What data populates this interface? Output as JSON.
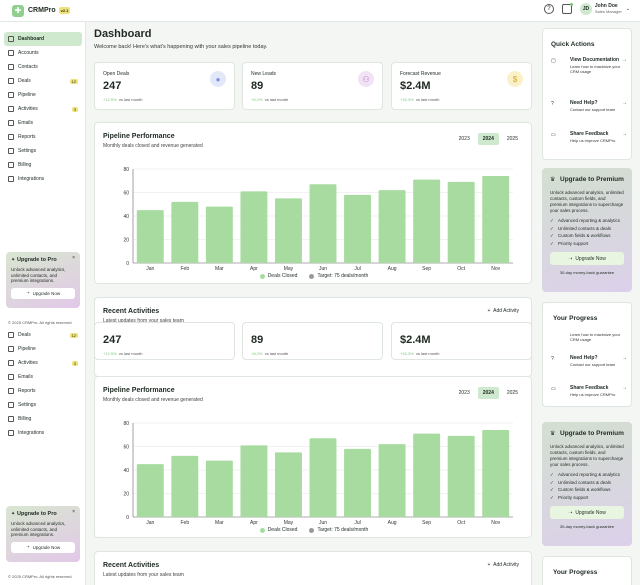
{
  "app": {
    "name": "CRMPro",
    "version": "v2.1"
  },
  "header": {
    "user_name": "John Doe",
    "user_role": "Sales Manager",
    "initials": "JD"
  },
  "sidebar": {
    "items": [
      {
        "label": "Dashboard",
        "active": true
      },
      {
        "label": "Accounts"
      },
      {
        "label": "Contacts"
      },
      {
        "label": "Deals",
        "badge": "12"
      },
      {
        "label": "Pipeline"
      },
      {
        "label": "Activities",
        "badge": "3"
      },
      {
        "label": "Emails"
      },
      {
        "label": "Reports"
      },
      {
        "label": "Settings"
      },
      {
        "label": "Billing"
      },
      {
        "label": "Integrations"
      }
    ],
    "items_repeat": [
      {
        "label": "Deals",
        "badge": "12"
      },
      {
        "label": "Pipeline"
      },
      {
        "label": "Activities",
        "badge": "3"
      },
      {
        "label": "Emails"
      },
      {
        "label": "Reports"
      },
      {
        "label": "Settings"
      },
      {
        "label": "Billing"
      },
      {
        "label": "Integrations"
      }
    ],
    "promo": {
      "title": "Upgrade to Pro",
      "text": "Unlock advanced analytics, unlimited contacts, and premium integrations.",
      "button": "Upgrade Now"
    },
    "copyright": "© 2025 CRMPro. All rights reserved."
  },
  "main": {
    "title": "Dashboard",
    "subtitle": "Welcome back! Here's what's happening with your sales pipeline today.",
    "stats": [
      {
        "label": "Open Deals",
        "value": "247",
        "change": "+12.5%",
        "period": "vs last month"
      },
      {
        "label": "New Leads",
        "value": "89",
        "change": "+8.2%",
        "period": "vs last month"
      },
      {
        "label": "Forecast Revenue",
        "value": "$2.4M",
        "change": "+15.3%",
        "period": "vs last month"
      }
    ],
    "pipeline": {
      "title": "Pipeline Performance",
      "subtitle": "Monthly deals closed and revenue generated",
      "years": [
        "2023",
        "2024",
        "2025"
      ],
      "active_year": "2024",
      "legend": [
        "Deals Closed",
        "Target: 75 deals/month"
      ]
    },
    "activities": {
      "title": "Recent Activities",
      "subtitle": "Latest updates from your sales team",
      "add_label": "Add Activity"
    }
  },
  "chart_data": {
    "type": "bar",
    "categories": [
      "Jan",
      "Feb",
      "Mar",
      "Apr",
      "May",
      "Jun",
      "Jul",
      "Aug",
      "Sep",
      "Oct",
      "Nov"
    ],
    "series": [
      {
        "name": "Deals Closed",
        "values": [
          45,
          52,
          48,
          61,
          55,
          67,
          58,
          62,
          71,
          69,
          74
        ]
      }
    ],
    "ylim": [
      0,
      80
    ],
    "yticks": [
      0,
      20,
      40,
      60,
      80
    ],
    "grid": true,
    "legend_position": "bottom",
    "colors": {
      "bar": "#a8dba0",
      "target": "#999999"
    }
  },
  "right": {
    "quick_actions_title": "Quick Actions",
    "quick_actions": [
      {
        "name": "View Documentation",
        "desc": "Learn how to maximize your CRM usage"
      },
      {
        "name": "Need Help?",
        "desc": "Contact our support team"
      },
      {
        "name": "Share Feedback",
        "desc": "Help us improve CRMPro"
      }
    ],
    "premium": {
      "title": "Upgrade to Premium",
      "text": "Unlock advanced analytics, unlimited contacts, custom fields, and premium integrations to supercharge your sales process.",
      "features": [
        "Advanced reporting & analytics",
        "Unlimited contacts & deals",
        "Custom fields & workflows",
        "Priority support"
      ],
      "button": "Upgrade Now",
      "footer": "30-day money-back guarantee"
    },
    "progress_title": "Your Progress"
  }
}
